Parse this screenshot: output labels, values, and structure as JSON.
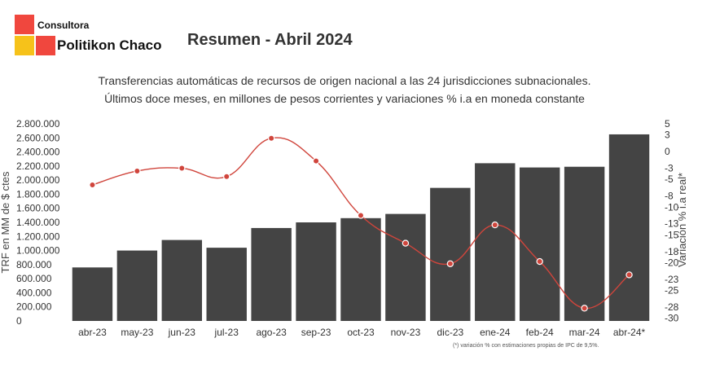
{
  "brand": {
    "small": "Consultora",
    "big": "Politikon Chaco",
    "colors": {
      "red": "#f0473e",
      "yellow": "#f6c21a"
    }
  },
  "report_title": "Resumen - Abril 2024",
  "subtitle_line1": "Transferencias automáticas de recursos de origen nacional a las 24 jurisdicciones subnacionales.",
  "subtitle_line2": "Últimos doce meses, en millones de pesos corrientes y variaciones % i.a en moneda constante",
  "footnote": "(*) variación % con estimaciones propias de IPC de 9,5%.",
  "chart_data": {
    "type": "bar",
    "categories": [
      "abr-23",
      "may-23",
      "jun-23",
      "jul-23",
      "ago-23",
      "sep-23",
      "oct-23",
      "nov-23",
      "dic-23",
      "ene-24",
      "feb-24",
      "mar-24",
      "abr-24*"
    ],
    "series": [
      {
        "type": "bar",
        "axis": "left",
        "color": "#444444",
        "values": [
          760000,
          1000000,
          1150000,
          1040000,
          1320000,
          1400000,
          1460000,
          1520000,
          1890000,
          2240000,
          2180000,
          2190000,
          2650000
        ]
      },
      {
        "type": "line",
        "axis": "right",
        "color": "#d0453c",
        "values": [
          -6.0,
          -3.5,
          -3.0,
          -4.5,
          2.4,
          -1.7,
          -11.5,
          -16.5,
          -20.2,
          -13.2,
          -19.8,
          -28.2,
          -22.2
        ]
      }
    ],
    "left_axis": {
      "label": "TRF en MM de $ ctes",
      "ylim": [
        0,
        2800000
      ],
      "ticks": [
        "0",
        "200.000",
        "400.000",
        "600.000",
        "800.000",
        "1.000.000",
        "1.200.000",
        "1.400.000",
        "1.600.000",
        "1.800.000",
        "2.000.000",
        "2.200.000",
        "2.400.000",
        "2.600.000",
        "2.800.000"
      ]
    },
    "right_axis": {
      "label": "Variación % i.a real*",
      "ylim": [
        -30.5,
        5
      ],
      "tick_values": [
        5,
        3,
        0,
        -3,
        -5,
        -8,
        -10,
        -13,
        -15,
        -18,
        -20,
        -23,
        -25,
        -28,
        -30
      ],
      "ticks": [
        "5",
        "3",
        "0",
        "-3",
        "-5",
        "-8",
        "-10",
        "-13",
        "-15",
        "-18",
        "-20",
        "-23",
        "-25",
        "-28",
        "-30"
      ]
    },
    "grid": false,
    "legend": "none"
  }
}
